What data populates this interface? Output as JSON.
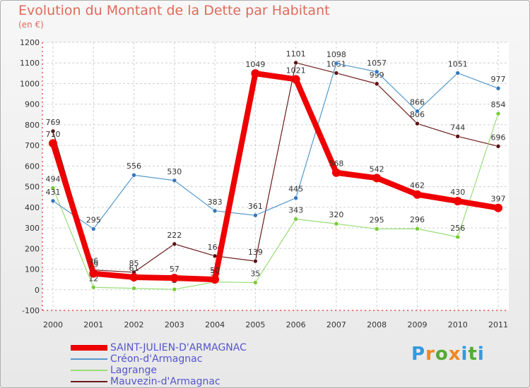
{
  "chart_data": {
    "type": "line",
    "title": "Evolution du Montant de la Dette par Habitant",
    "subtitle": "(en €)",
    "xlabel": "",
    "ylabel": "",
    "categories": [
      "2000",
      "2001",
      "2002",
      "2003",
      "2004",
      "2005",
      "2006",
      "2007",
      "2008",
      "2009",
      "2010",
      "2011"
    ],
    "ylim": [
      -100,
      1200
    ],
    "yticks": [
      -100,
      0,
      100,
      200,
      300,
      400,
      500,
      600,
      700,
      800,
      900,
      1000,
      1100,
      1200
    ],
    "grid": true,
    "series": [
      {
        "name": "Mauvezin-d'Armagnac",
        "color": "#6b1a1a",
        "marker": "#5a1212",
        "width": 1.2,
        "values": [
          769,
          96,
          85,
          222,
          164,
          139,
          1101,
          1051,
          999,
          806,
          744,
          696
        ]
      },
      {
        "name": "Lagrange",
        "color": "#99dd77",
        "marker": "#77cc33",
        "width": 1.2,
        "values": [
          494,
          12,
          7,
          2,
          38,
          35,
          343,
          320,
          295,
          296,
          256,
          854
        ]
      },
      {
        "name": "Créon-d'Armagnac",
        "color": "#5599cc",
        "marker": "#3377bb",
        "width": 1.2,
        "values": [
          431,
          295,
          556,
          530,
          383,
          361,
          445,
          1098,
          1057,
          866,
          1051,
          977
        ]
      },
      {
        "name": "SAINT-JULIEN-D'ARMAGNAC",
        "color": "#ee0000",
        "marker": "#ee0000",
        "width": 8,
        "values": [
          710,
          79,
          61,
          57,
          50,
          1049,
          1021,
          568,
          542,
          462,
          430,
          397
        ]
      }
    ],
    "legend": [
      "SAINT-JULIEN-D'ARMAGNAC",
      "Créon-d'Armagnac",
      "Lagrange",
      "Mauvezin-d'Armagnac"
    ],
    "legend_position": "bottom-left"
  },
  "logo": {
    "letters": [
      "P",
      "r",
      "o",
      "x",
      "i",
      "t",
      "i"
    ],
    "colors": [
      "#3399dd",
      "#ee8822",
      "#55aa33",
      "#ee8822",
      "#3399dd",
      "#55aa33",
      "#3399dd"
    ]
  }
}
